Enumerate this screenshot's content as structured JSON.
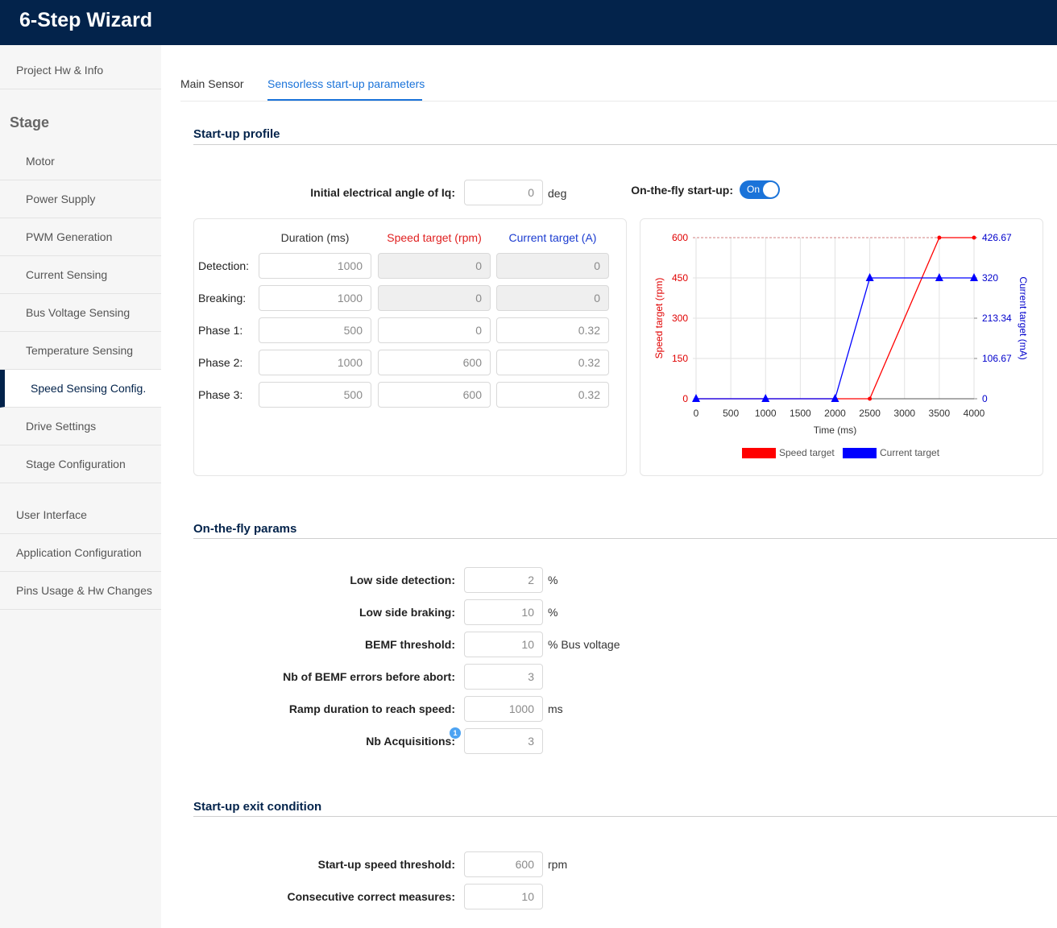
{
  "app": {
    "title": "6-Step Wizard"
  },
  "sidebar": {
    "top_items": [
      "Project Hw & Info"
    ],
    "stage_heading": "Stage",
    "stage_items": [
      "Motor",
      "Power Supply",
      "PWM Generation",
      "Current Sensing",
      "Bus Voltage Sensing",
      "Temperature Sensing",
      "Speed Sensing Config.",
      "Drive Settings",
      "Stage Configuration"
    ],
    "active_item": "Speed Sensing Config.",
    "bottom_items": [
      "User Interface",
      "Application Configuration",
      "Pins Usage & Hw Changes"
    ]
  },
  "tabs": [
    {
      "label": "Main Sensor",
      "active": false
    },
    {
      "label": "Sensorless start-up parameters",
      "active": true
    }
  ],
  "startup_profile": {
    "title": "Start-up profile",
    "angle_label": "Initial electrical angle of Iq:",
    "angle_value": "0",
    "angle_unit": "deg",
    "otf_label": "On-the-fly start-up:",
    "otf_state": "On",
    "columns": {
      "duration": "Duration (ms)",
      "speed": "Speed target (rpm)",
      "current": "Current target (A)"
    },
    "column_colors": {
      "duration": "#333333",
      "speed": "#e02020",
      "current": "#1a3bd0"
    },
    "rows": [
      {
        "label": "Detection:",
        "duration": "1000",
        "speed": "0",
        "current": "0",
        "locked": true
      },
      {
        "label": "Breaking:",
        "duration": "1000",
        "speed": "0",
        "current": "0",
        "locked": true
      },
      {
        "label": "Phase 1:",
        "duration": "500",
        "speed": "0",
        "current": "0.32",
        "locked": false
      },
      {
        "label": "Phase 2:",
        "duration": "1000",
        "speed": "600",
        "current": "0.32",
        "locked": false
      },
      {
        "label": "Phase 3:",
        "duration": "500",
        "speed": "600",
        "current": "0.32",
        "locked": false
      }
    ]
  },
  "chart_data": {
    "type": "line",
    "xlabel": "Time (ms)",
    "ylabel_left": "Speed target (rpm)",
    "ylabel_right": "Current target (mA)",
    "xlim": [
      0,
      4000
    ],
    "x_ticks": [
      "0",
      "500",
      "1000",
      "1500",
      "2000",
      "2500",
      "3000",
      "3500",
      "4000"
    ],
    "ylim_left": [
      0,
      600
    ],
    "y_ticks_left": [
      "0",
      "150",
      "300",
      "450",
      "600"
    ],
    "ylim_right": [
      0,
      426.67
    ],
    "y_ticks_right": [
      "0",
      "106.67",
      "213.34",
      "320",
      "426.67"
    ],
    "grid": true,
    "legend_position": "bottom",
    "series": [
      {
        "name": "Speed target",
        "axis": "left",
        "color": "#ff0000",
        "x": [
          0,
          1000,
          2000,
          2500,
          3500,
          4000
        ],
        "y": [
          0,
          0,
          0,
          0,
          600,
          600
        ]
      },
      {
        "name": "Current target",
        "axis": "right",
        "color": "#0000ff",
        "x": [
          0,
          1000,
          2000,
          2500,
          3500,
          4000
        ],
        "y": [
          0,
          0,
          0,
          320,
          320,
          320
        ]
      }
    ]
  },
  "otf_params": {
    "title": "On-the-fly params",
    "fields": [
      {
        "label": "Low side detection:",
        "value": "2",
        "unit": "%"
      },
      {
        "label": "Low side braking:",
        "value": "10",
        "unit": "%"
      },
      {
        "label": "BEMF threshold:",
        "value": "10",
        "unit": "% Bus voltage"
      },
      {
        "label": "Nb of BEMF errors before abort:",
        "value": "3",
        "unit": ""
      },
      {
        "label": "Ramp duration to reach speed:",
        "value": "1000",
        "unit": "ms"
      },
      {
        "label": "Nb Acquisitions:",
        "value": "3",
        "unit": ""
      }
    ],
    "info_badge": "1"
  },
  "exit_condition": {
    "title": "Start-up exit condition",
    "fields": [
      {
        "label": "Start-up speed threshold:",
        "value": "600",
        "unit": "rpm"
      },
      {
        "label": "Consecutive correct measures:",
        "value": "10",
        "unit": ""
      }
    ]
  }
}
